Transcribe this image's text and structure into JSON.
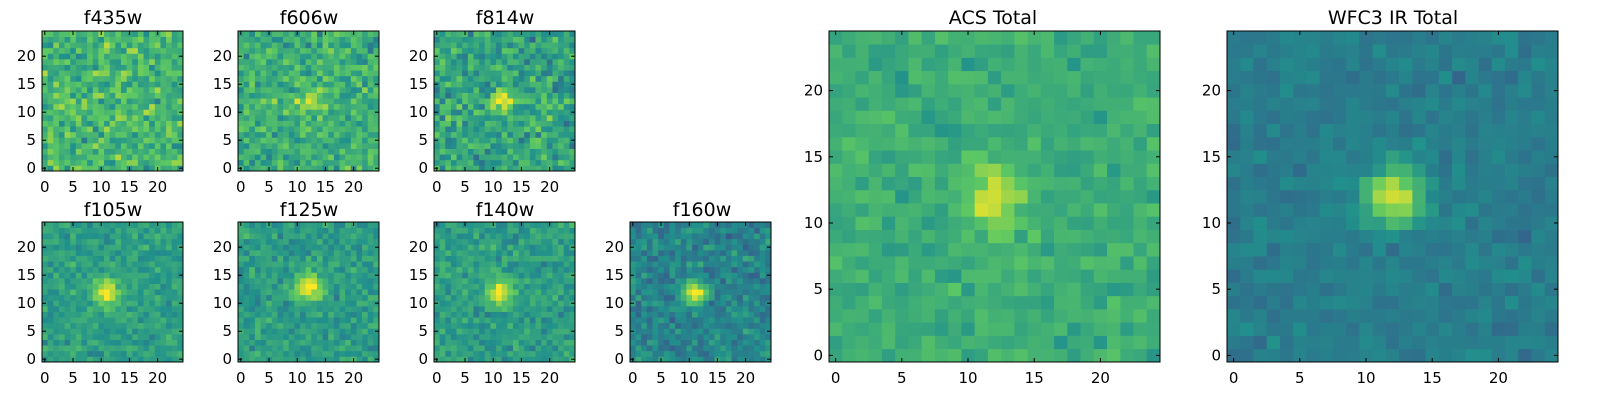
{
  "colormap": [
    "#440154",
    "#3b528b",
    "#21918c",
    "#5ec962",
    "#fde725"
  ],
  "chart_data": [
    {
      "id": "f435w",
      "type": "heatmap",
      "title": "f435w",
      "grid_size": 25,
      "xlim": [
        -0.5,
        24.5
      ],
      "ylim": [
        -0.5,
        24.5
      ],
      "xticks": [
        0,
        5,
        10,
        15,
        20
      ],
      "yticks": [
        0,
        5,
        10,
        15,
        20
      ],
      "grid": false,
      "background_mean": 0.66,
      "noise": 0.28,
      "peak": {
        "x": 12,
        "y": 12,
        "amplitude": 0.05,
        "sigma": 2.0
      }
    },
    {
      "id": "f606w",
      "type": "heatmap",
      "title": "f606w",
      "grid_size": 25,
      "xlim": [
        -0.5,
        24.5
      ],
      "ylim": [
        -0.5,
        24.5
      ],
      "xticks": [
        0,
        5,
        10,
        15,
        20
      ],
      "yticks": [
        0,
        5,
        10,
        15,
        20
      ],
      "grid": false,
      "background_mean": 0.62,
      "noise": 0.26,
      "peak": {
        "x": 12,
        "y": 12,
        "amplitude": 0.25,
        "sigma": 1.6
      }
    },
    {
      "id": "f814w",
      "type": "heatmap",
      "title": "f814w",
      "grid_size": 25,
      "xlim": [
        -0.5,
        24.5
      ],
      "ylim": [
        -0.5,
        24.5
      ],
      "xticks": [
        0,
        5,
        10,
        15,
        20
      ],
      "yticks": [
        0,
        5,
        10,
        15,
        20
      ],
      "grid": false,
      "background_mean": 0.58,
      "noise": 0.28,
      "peak": {
        "x": 12,
        "y": 12,
        "amplitude": 0.45,
        "sigma": 1.4
      }
    },
    {
      "id": "f105w",
      "type": "heatmap",
      "title": "f105w",
      "grid_size": 25,
      "xlim": [
        -0.5,
        24.5
      ],
      "ylim": [
        -0.5,
        24.5
      ],
      "xticks": [
        0,
        5,
        10,
        15,
        20
      ],
      "yticks": [
        0,
        5,
        10,
        15,
        20
      ],
      "grid": false,
      "background_mean": 0.56,
      "noise": 0.16,
      "peak": {
        "x": 11,
        "y": 12,
        "amplitude": 0.5,
        "sigma": 1.5
      }
    },
    {
      "id": "f125w",
      "type": "heatmap",
      "title": "f125w",
      "grid_size": 25,
      "xlim": [
        -0.5,
        24.5
      ],
      "ylim": [
        -0.5,
        24.5
      ],
      "xticks": [
        0,
        5,
        10,
        15,
        20
      ],
      "yticks": [
        0,
        5,
        10,
        15,
        20
      ],
      "grid": false,
      "background_mean": 0.55,
      "noise": 0.17,
      "peak": {
        "x": 12,
        "y": 13,
        "amplitude": 0.5,
        "sigma": 1.6
      }
    },
    {
      "id": "f140w",
      "type": "heatmap",
      "title": "f140w",
      "grid_size": 25,
      "xlim": [
        -0.5,
        24.5
      ],
      "ylim": [
        -0.5,
        24.5
      ],
      "xticks": [
        0,
        5,
        10,
        15,
        20
      ],
      "yticks": [
        0,
        5,
        10,
        15,
        20
      ],
      "grid": false,
      "background_mean": 0.55,
      "noise": 0.18,
      "peak": {
        "x": 11,
        "y": 12,
        "amplitude": 0.45,
        "sigma": 1.5
      }
    },
    {
      "id": "f160w",
      "type": "heatmap",
      "title": "f160w",
      "grid_size": 25,
      "xlim": [
        -0.5,
        24.5
      ],
      "ylim": [
        -0.5,
        24.5
      ],
      "xticks": [
        0,
        5,
        10,
        15,
        20
      ],
      "yticks": [
        0,
        5,
        10,
        15,
        20
      ],
      "grid": false,
      "background_mean": 0.45,
      "noise": 0.2,
      "peak": {
        "x": 11,
        "y": 12,
        "amplitude": 0.55,
        "sigma": 1.5
      }
    },
    {
      "id": "acs-total",
      "type": "heatmap",
      "title": "ACS Total",
      "grid_size": 25,
      "xlim": [
        -0.5,
        24.5
      ],
      "ylim": [
        -0.5,
        24.5
      ],
      "xticks": [
        0,
        5,
        10,
        15,
        20
      ],
      "yticks": [
        0,
        5,
        10,
        15,
        20
      ],
      "grid": false,
      "background_mean": 0.62,
      "noise": 0.14,
      "peak": {
        "x": 12,
        "y": 12,
        "amplitude": 0.35,
        "sigma": 1.5
      }
    },
    {
      "id": "wfc3-ir-total",
      "type": "heatmap",
      "title": "WFC3 IR Total",
      "grid_size": 25,
      "xlim": [
        -0.5,
        24.5
      ],
      "ylim": [
        -0.5,
        24.5
      ],
      "xticks": [
        0,
        5,
        10,
        15,
        20
      ],
      "yticks": [
        0,
        5,
        10,
        15,
        20
      ],
      "grid": false,
      "background_mean": 0.42,
      "noise": 0.1,
      "peak": {
        "x": 12,
        "y": 12,
        "amplitude": 0.55,
        "sigma": 1.5
      }
    }
  ]
}
